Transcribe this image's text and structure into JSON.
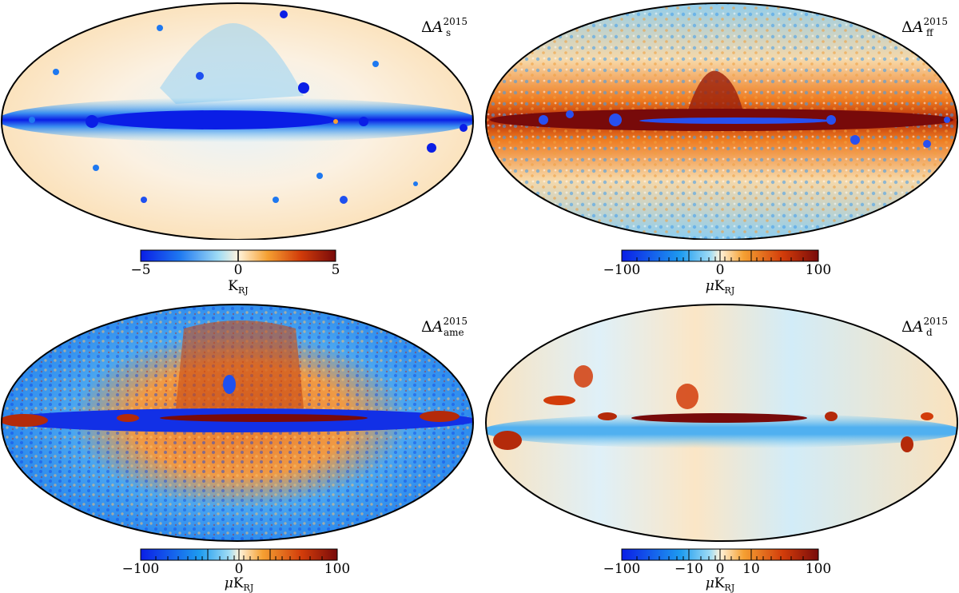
{
  "maps": [
    {
      "id": "sync",
      "title_base": "A",
      "title_sub": "s",
      "title_sup": "2015",
      "colorbar": {
        "ticks": [
          {
            "value": -5,
            "label": "−5"
          },
          {
            "value": 0,
            "label": "0"
          },
          {
            "value": 5,
            "label": "5"
          }
        ],
        "unit_prefix": "",
        "unit_main": "K",
        "unit_sub": "RJ"
      }
    },
    {
      "id": "freefree",
      "title_base": "A",
      "title_sub": "ff",
      "title_sup": "2015",
      "colorbar": {
        "ticks": [
          {
            "value": -100,
            "label": "−100"
          },
          {
            "value": 0,
            "label": "0"
          },
          {
            "value": 100,
            "label": "100"
          }
        ],
        "unit_prefix": "μ",
        "unit_main": "K",
        "unit_sub": "RJ"
      }
    },
    {
      "id": "ame",
      "title_base": "A",
      "title_sub": "ame",
      "title_sup": "2015",
      "colorbar": {
        "ticks": [
          {
            "value": -100,
            "label": "−100"
          },
          {
            "value": 0,
            "label": "0"
          },
          {
            "value": 100,
            "label": "100"
          }
        ],
        "unit_prefix": "μ",
        "unit_main": "K",
        "unit_sub": "RJ"
      }
    },
    {
      "id": "dust",
      "title_base": "A",
      "title_sub": "d",
      "title_sup": "2015",
      "colorbar": {
        "ticks": [
          {
            "value": -100,
            "label": "−100"
          },
          {
            "value": -10,
            "label": "−10"
          },
          {
            "value": 0,
            "label": "0"
          },
          {
            "value": 10,
            "label": "10"
          },
          {
            "value": 100,
            "label": "100"
          }
        ],
        "unit_prefix": "μ",
        "unit_main": "K",
        "unit_sub": "RJ"
      }
    }
  ],
  "colors": {
    "deep_blue": "#0a1ee6",
    "blue": "#1e78f0",
    "light_blue": "#78c8f0",
    "cream": "#fff4dc",
    "orange": "#f5a032",
    "red": "#d23c0a",
    "dark_red": "#780a0a"
  }
}
